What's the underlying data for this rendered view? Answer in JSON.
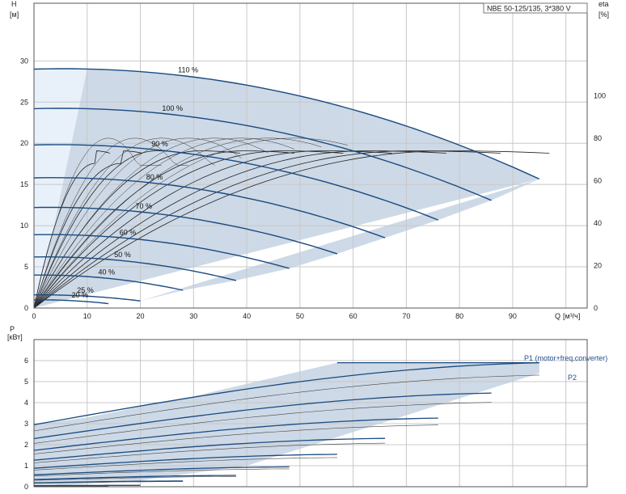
{
  "title_box": "NBE 50-125/135, 3*380 V",
  "upper": {
    "y_label": "H",
    "y_unit": "[м]",
    "right_label": "eta",
    "right_unit": "[%]",
    "x_label": "Q",
    "x_unit": "[м³/ч]",
    "x_ticks": [
      0,
      10,
      20,
      30,
      40,
      50,
      60,
      70,
      80,
      90
    ],
    "y_ticks": [
      0,
      5,
      10,
      15,
      20,
      25,
      30
    ],
    "eta_ticks": [
      0,
      20,
      40,
      60,
      80,
      100
    ]
  },
  "lower": {
    "y_label": "P",
    "y_unit": "[кВт]",
    "y_ticks": [
      0,
      1,
      2,
      3,
      4,
      5,
      6
    ],
    "p1_label": "P1 (motor+freq.converter)",
    "p2_label": "P2"
  },
  "colors": {
    "area": "#cdd9e6",
    "light_area": "#e8f1fa",
    "curve": "#1a4a80",
    "grid": "#c8c8c8"
  },
  "chart_data": {
    "type": "line",
    "x_range": [
      0,
      104
    ],
    "head": {
      "ylim": [
        0,
        37
      ],
      "speed_curves": [
        {
          "label": "110 %",
          "q_max": 95,
          "h0": 29.0
        },
        {
          "label": "100 %",
          "q_max": 86,
          "h0": 24.2
        },
        {
          "label": "90 %",
          "q_max": 76,
          "h0": 19.8
        },
        {
          "label": "80 %",
          "q_max": 66,
          "h0": 15.8
        },
        {
          "label": "70 %",
          "q_max": 57,
          "h0": 12.2
        },
        {
          "label": "60 %",
          "q_max": 48,
          "h0": 8.9
        },
        {
          "label": "50 %",
          "q_max": 38,
          "h0": 6.2
        },
        {
          "label": "40 %",
          "q_max": 28,
          "h0": 4.0
        },
        {
          "label": "25 %",
          "q_max": 20,
          "h0": 1.6
        },
        {
          "label": "20 %",
          "q_max": 14,
          "h0": 1.0
        }
      ]
    },
    "efficiency": {
      "ylim": [
        0,
        143.5
      ],
      "eta_max": 74
    },
    "power": {
      "ylim": [
        0,
        7
      ],
      "p1_max": 5.9,
      "p2_max": 5.4
    }
  }
}
